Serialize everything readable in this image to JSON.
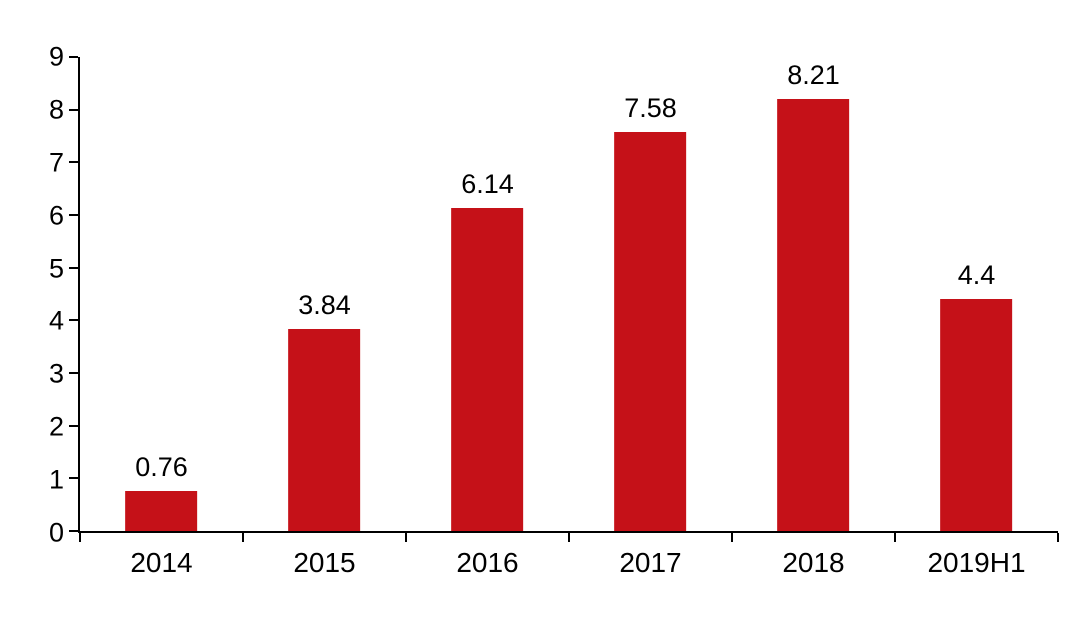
{
  "chart_data": {
    "type": "bar",
    "title": "",
    "xlabel": "",
    "ylabel": "",
    "categories": [
      "2014",
      "2015",
      "2016",
      "2017",
      "2018",
      "2019H1"
    ],
    "values": [
      0.76,
      3.84,
      6.14,
      7.58,
      8.21,
      4.4
    ],
    "value_labels": [
      "0.76",
      "3.84",
      "6.14",
      "7.58",
      "8.21",
      "4.4"
    ],
    "ylim": [
      0,
      9
    ],
    "ytick_step": 1,
    "ytick_labels": [
      "0",
      "1",
      "2",
      "3",
      "4",
      "5",
      "6",
      "7",
      "8",
      "9"
    ],
    "grid": false,
    "legend_position": "none",
    "bar_color": "#c51118",
    "axis_color": "#000000",
    "background_color": "#ffffff",
    "label_color": "#000000"
  }
}
